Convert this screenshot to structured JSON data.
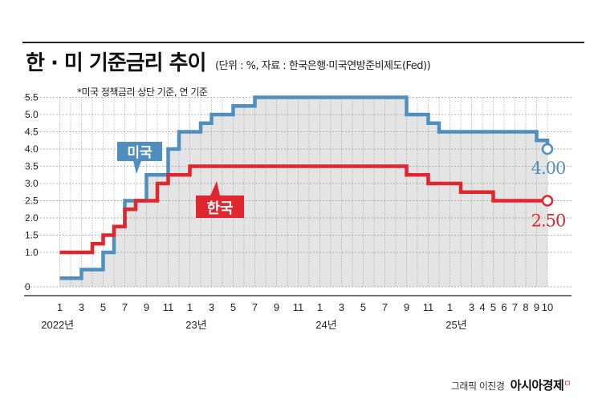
{
  "header": {
    "title": "한 · 미 기준금리 추이",
    "subtitle": "(단위 : %, 자료 : 한국은행·미국연방준비제도(Fed))",
    "note": "*미국 정책금리 상단 기준, 연 기준"
  },
  "credit": {
    "author": "그래픽 이진경",
    "brand": "아시아경제",
    "brand_mark": "ㅁ"
  },
  "colors": {
    "us": "#4f8fc0",
    "korea": "#e0262e",
    "grid": "#999999",
    "fill": "#e4e4e4"
  },
  "chart_data": {
    "type": "line",
    "title": "한 · 미 기준금리 추이",
    "x_unit": "month index (0 = 2022-01)",
    "y_ticks": [
      "0",
      "1.0",
      "1.5",
      "2.0",
      "2.5",
      "3.0",
      "3.5",
      "4.0",
      "4.5",
      "5.0",
      "5.5"
    ],
    "ylim": [
      0,
      5.5
    ],
    "x_tick_labels": [
      {
        "m": 0,
        "label": "1"
      },
      {
        "m": 2,
        "label": "3"
      },
      {
        "m": 4,
        "label": "5"
      },
      {
        "m": 6,
        "label": "7"
      },
      {
        "m": 8,
        "label": "9"
      },
      {
        "m": 10,
        "label": "11"
      },
      {
        "m": 12,
        "label": "1"
      },
      {
        "m": 14,
        "label": "3"
      },
      {
        "m": 16,
        "label": "5"
      },
      {
        "m": 18,
        "label": "7"
      },
      {
        "m": 20,
        "label": "9"
      },
      {
        "m": 22,
        "label": "11"
      },
      {
        "m": 24,
        "label": "1"
      },
      {
        "m": 26,
        "label": "3"
      },
      {
        "m": 28,
        "label": "5"
      },
      {
        "m": 30,
        "label": "7"
      },
      {
        "m": 32,
        "label": "9"
      },
      {
        "m": 34,
        "label": "11"
      },
      {
        "m": 36,
        "label": "1"
      },
      {
        "m": 38,
        "label": "3"
      },
      {
        "m": 39,
        "label": "4"
      },
      {
        "m": 40,
        "label": "5"
      },
      {
        "m": 41,
        "label": "6"
      },
      {
        "m": 42,
        "label": "7"
      },
      {
        "m": 43,
        "label": "8"
      },
      {
        "m": 44,
        "label": "9"
      },
      {
        "m": 45,
        "label": "10"
      }
    ],
    "year_labels": [
      {
        "m": 0.5,
        "label": "2022년"
      },
      {
        "m": 12.5,
        "label": "23년"
      },
      {
        "m": 24.5,
        "label": "24년"
      },
      {
        "m": 36.5,
        "label": "25년"
      }
    ],
    "series": [
      {
        "name": "미국",
        "color": "#4f8fc0",
        "end_label": "4.00",
        "steps": [
          {
            "m": 0,
            "v": 0.25
          },
          {
            "m": 2,
            "v": 0.5
          },
          {
            "m": 4,
            "v": 1.0
          },
          {
            "m": 5,
            "v": 1.75
          },
          {
            "m": 6,
            "v": 2.5
          },
          {
            "m": 8,
            "v": 3.25
          },
          {
            "m": 10,
            "v": 4.0
          },
          {
            "m": 11,
            "v": 4.5
          },
          {
            "m": 13,
            "v": 4.75
          },
          {
            "m": 14,
            "v": 5.0
          },
          {
            "m": 16,
            "v": 5.25
          },
          {
            "m": 18,
            "v": 5.5
          },
          {
            "m": 32,
            "v": 5.0
          },
          {
            "m": 34,
            "v": 4.75
          },
          {
            "m": 35,
            "v": 4.5
          },
          {
            "m": 44,
            "v": 4.25
          },
          {
            "m": 45,
            "v": 4.0
          }
        ]
      },
      {
        "name": "한국",
        "color": "#e0262e",
        "end_label": "2.50",
        "steps": [
          {
            "m": 0,
            "v": 1.0
          },
          {
            "m": 3,
            "v": 1.25
          },
          {
            "m": 4,
            "v": 1.5
          },
          {
            "m": 5,
            "v": 1.75
          },
          {
            "m": 6,
            "v": 2.25
          },
          {
            "m": 7,
            "v": 2.5
          },
          {
            "m": 9,
            "v": 3.0
          },
          {
            "m": 10,
            "v": 3.25
          },
          {
            "m": 12,
            "v": 3.5
          },
          {
            "m": 32,
            "v": 3.25
          },
          {
            "m": 34,
            "v": 3.0
          },
          {
            "m": 37,
            "v": 2.75
          },
          {
            "m": 40,
            "v": 2.5
          },
          {
            "m": 45,
            "v": 2.5
          }
        ]
      }
    ]
  }
}
